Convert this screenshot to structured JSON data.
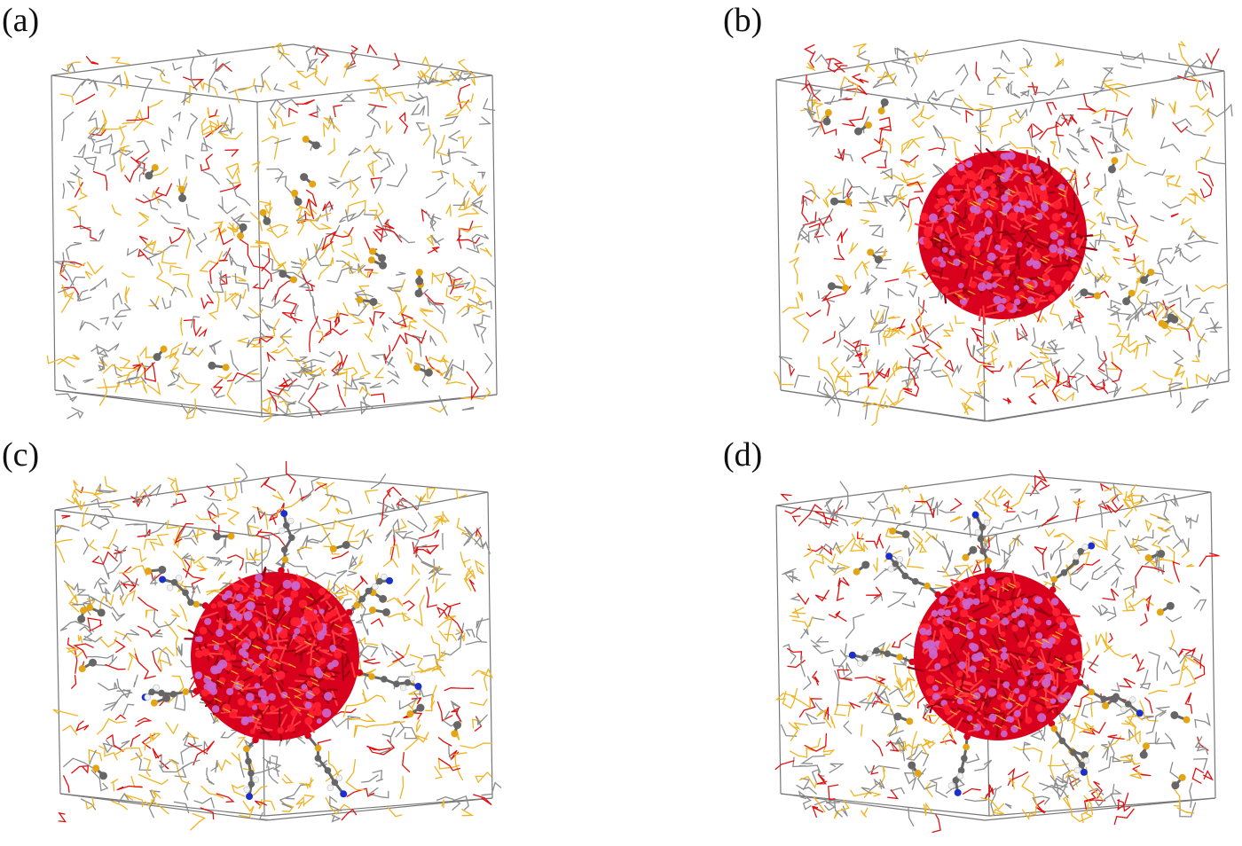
{
  "panels": [
    {
      "id": "a",
      "label": "(a)",
      "nanoparticle": false,
      "ligands": false
    },
    {
      "id": "b",
      "label": "(b)",
      "nanoparticle": true,
      "ligands": false
    },
    {
      "id": "c",
      "label": "(c)",
      "nanoparticle": true,
      "ligands": true
    },
    {
      "id": "d",
      "label": "(d)",
      "nanoparticle": true,
      "ligands": true
    }
  ],
  "colors": {
    "box_edge": "#777777",
    "solvent_gray": "#8c8c8c",
    "solvent_yellow": "#f0b323",
    "solvent_red": "#e01010",
    "particle_red": "#d8001c",
    "particle_magenta": "#cc66cc",
    "ball_gray": "#666666",
    "ball_yellow": "#e3a514",
    "nitrogen_blue": "#1a2fcc",
    "hydrogen_white": "#f2f2f2"
  }
}
